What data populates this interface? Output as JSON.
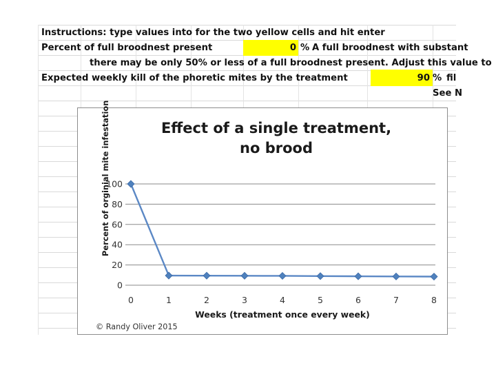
{
  "sheet": {
    "rows": [
      {
        "text": "Instructions: type values into for the two yellow cells and hit enter"
      },
      {
        "label": "Percent of full broodnest present",
        "value": "0",
        "unit": "%",
        "note": "A full broodnest with substant"
      },
      {
        "text": "there may be only 50% or less of a full broodnest present.  Adjust this value to"
      },
      {
        "label": "Expected weekly kill of the phoretic mites by the treatment",
        "value": "90",
        "unit": "%",
        "note": "fil"
      },
      {
        "text": "See N"
      }
    ]
  },
  "colors": {
    "input_cell": "#ffff00",
    "series_line": "#5b88c5",
    "series_marker": "#4f81bd",
    "gridline": "#8a8a8a",
    "sheet_grid": "#d9d9d9"
  },
  "chart_data": {
    "type": "line",
    "title_lines": [
      "Effect of a single treatment,",
      "no brood"
    ],
    "xlabel": "Weeks (treatment once every week)",
    "ylabel": "Percent of orginial mite infestation",
    "credit": "© Randy Oliver 2015",
    "x": [
      0,
      1,
      2,
      3,
      4,
      5,
      6,
      7,
      8
    ],
    "y": [
      100,
      9.5,
      9.4,
      9.3,
      9.2,
      9.0,
      8.8,
      8.6,
      8.5
    ],
    "xticks": [
      "0",
      "1",
      "2",
      "3",
      "4",
      "5",
      "6",
      "7",
      "8"
    ],
    "yticks": [
      "0",
      "20",
      "40",
      "60",
      "80",
      "100"
    ],
    "ylim": [
      0,
      100
    ],
    "xlim": [
      0,
      8
    ],
    "grid": "horizontal",
    "legend": "none",
    "marker": "diamond"
  }
}
